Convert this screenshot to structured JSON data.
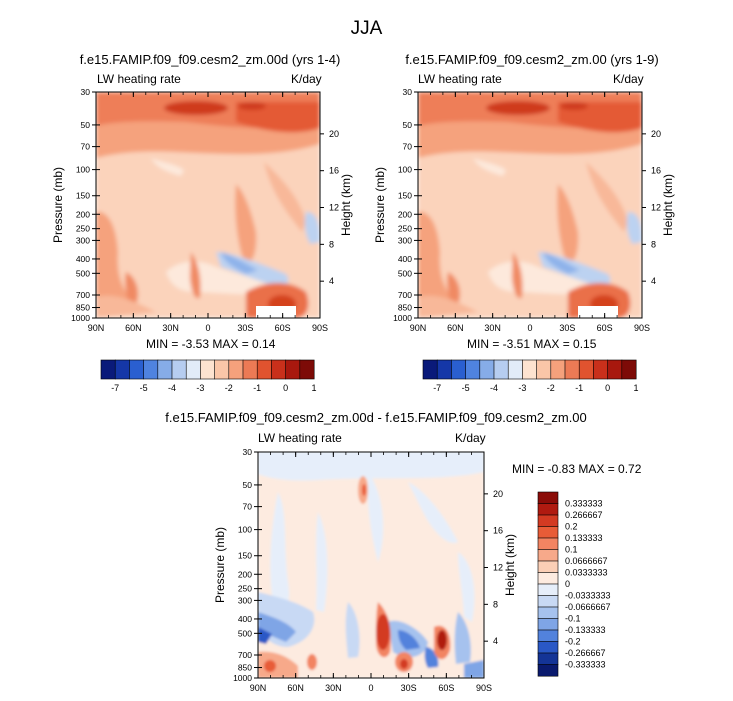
{
  "figure_title": "JJA",
  "panels": [
    {
      "title": "f.e15.FAMIP.f09_f09.cesm2_zm.00d (yrs 1-4)",
      "var_label": "LW heating rate",
      "units": "K/day",
      "minmax": "MIN =  -3.53   MAX =   0.14"
    },
    {
      "title": "f.e15.FAMIP.f09_f09.cesm2_zm.00 (yrs 1-9)",
      "var_label": "LW heating rate",
      "units": "K/day",
      "minmax": "MIN =  -3.51   MAX =   0.15"
    },
    {
      "title": "f.e15.FAMIP.f09_f09.cesm2_zm.00d - f.e15.FAMIP.f09_f09.cesm2_zm.00",
      "var_label": "LW heating rate",
      "units": "K/day",
      "minmax": "MIN =  -0.83   MAX =   0.72"
    }
  ],
  "chart_data": [
    {
      "type": "heatmap",
      "title": "f.e15.FAMIP.f09_f09.cesm2_zm.00d (yrs 1-4)",
      "ylabel": "Pressure (mb)",
      "y2label": "Height (km)",
      "x_ticks": [
        "90N",
        "60N",
        "30N",
        "0",
        "30S",
        "60S",
        "90S"
      ],
      "y_ticks": [
        30,
        50,
        70,
        100,
        150,
        200,
        250,
        300,
        400,
        500,
        700,
        850,
        1000
      ],
      "y2_ticks": [
        20,
        16,
        12,
        8,
        4
      ],
      "ylim": [
        30,
        1000
      ],
      "min": -3.53,
      "max": 0.14
    },
    {
      "type": "heatmap",
      "title": "f.e15.FAMIP.f09_f09.cesm2_zm.00 (yrs 1-9)",
      "ylabel": "Pressure (mb)",
      "y2label": "Height (km)",
      "x_ticks": [
        "90N",
        "60N",
        "30N",
        "0",
        "30S",
        "60S",
        "90S"
      ],
      "y_ticks": [
        30,
        50,
        70,
        100,
        150,
        200,
        250,
        300,
        400,
        500,
        700,
        850,
        1000
      ],
      "y2_ticks": [
        20,
        16,
        12,
        8,
        4
      ],
      "ylim": [
        30,
        1000
      ],
      "min": -3.51,
      "max": 0.15
    },
    {
      "type": "heatmap",
      "title": "f.e15.FAMIP.f09_f09.cesm2_zm.00d - f.e15.FAMIP.f09_f09.cesm2_zm.00",
      "ylabel": "Pressure (mb)",
      "y2label": "Height (km)",
      "x_ticks": [
        "90N",
        "60N",
        "30N",
        "0",
        "30S",
        "60S",
        "90S"
      ],
      "y_ticks": [
        30,
        50,
        70,
        100,
        150,
        200,
        250,
        300,
        400,
        500,
        700,
        850,
        1000
      ],
      "y2_ticks": [
        20,
        16,
        12,
        8,
        4
      ],
      "ylim": [
        30,
        1000
      ],
      "min": -0.83,
      "max": 0.72
    }
  ],
  "colorbar_main": {
    "labels": [
      "-7",
      "-5",
      "-4",
      "-3",
      "-2",
      "-1",
      "0",
      "1"
    ],
    "colors": [
      "#0a1a7a",
      "#1537a8",
      "#2a5fd0",
      "#4f83e0",
      "#86ace8",
      "#b6cdf0",
      "#e2ecf8",
      "#fde3d0",
      "#fac6a8",
      "#f5a17c",
      "#ec7a55",
      "#e0532f",
      "#c9301b",
      "#a8180e",
      "#7d0b07"
    ]
  },
  "colorbar_diff": {
    "labels": [
      "0.333333",
      "0.266667",
      "0.2",
      "0.133333",
      "0.1",
      "0.0666667",
      "0.0333333",
      "0",
      "-0.0333333",
      "-0.0666667",
      "-0.1",
      "-0.133333",
      "-0.2",
      "-0.266667",
      "-0.333333"
    ],
    "colors": [
      "#8b0c08",
      "#b01a10",
      "#d33a22",
      "#e85c37",
      "#f28462",
      "#f7a98a",
      "#fbcfb6",
      "#fdebe0",
      "#e6eefa",
      "#c8d9f4",
      "#a6c2ee",
      "#7fa5e6",
      "#5282dc",
      "#2a58c6",
      "#143496",
      "#0a1a6e"
    ]
  }
}
